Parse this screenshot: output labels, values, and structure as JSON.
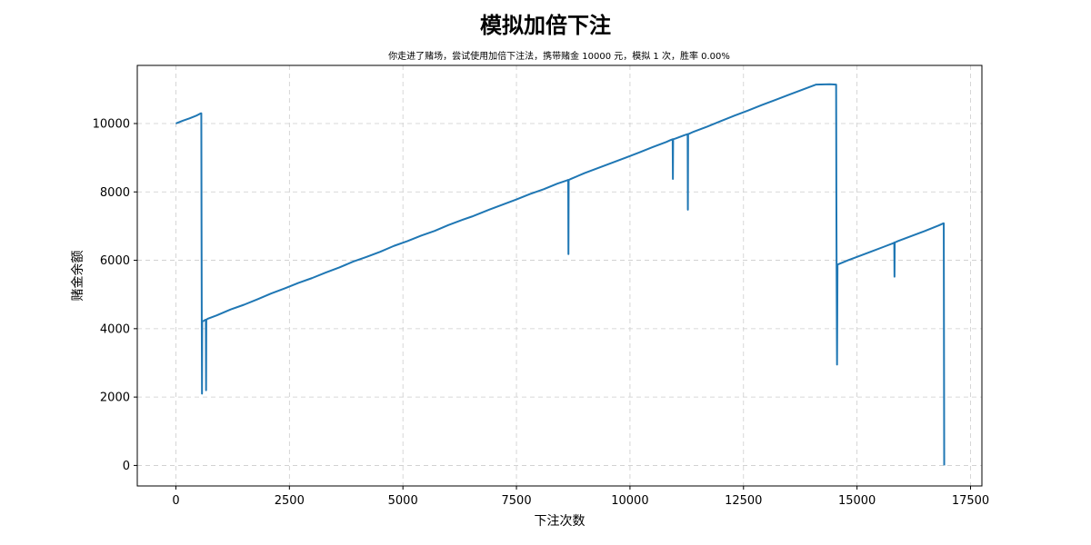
{
  "chart_data": {
    "type": "line",
    "title": "模拟加倍下注",
    "subtitle": "你走进了赌场，尝试使用加倍下注法，携带赌金 10000 元，模拟 1 次，胜率 0.00%",
    "xlabel": "下注次数",
    "ylabel": "赌金余额",
    "xlim": [
      -850,
      17750
    ],
    "ylim": [
      -600,
      11700
    ],
    "xticks": [
      0,
      2500,
      5000,
      7500,
      10000,
      12500,
      15000,
      17500
    ],
    "yticks": [
      0,
      2000,
      4000,
      6000,
      8000,
      10000
    ],
    "grid": true,
    "line_color": "#1f77b4",
    "series": [
      {
        "x": [
          0,
          150,
          300,
          450,
          550,
          560,
          565,
          570,
          575,
          580,
          600,
          650,
          660,
          665,
          670,
          700,
          900,
          1200,
          1500,
          1800,
          2100,
          2400,
          2700,
          3000,
          3300,
          3600,
          3900,
          4200,
          4500,
          4800,
          5100,
          5400,
          5700,
          6000,
          6300,
          6520,
          6600,
          6900,
          7200,
          7500,
          7800,
          8100,
          8400,
          8600,
          8640,
          8645,
          8650,
          8700,
          9000,
          9300,
          9600,
          9900,
          10200,
          10500,
          10800,
          10900,
          10940,
          10945,
          10950,
          11000,
          11200,
          11270,
          11275,
          11280,
          11300,
          11400,
          11700,
          12000,
          12300,
          12600,
          12900,
          13200,
          13500,
          13800,
          14100,
          14400,
          14540,
          14545,
          14550,
          14560,
          14570,
          14580,
          14600,
          14800,
          15000,
          15300,
          15600,
          15800,
          15820,
          15825,
          15830,
          15900,
          16200,
          16500,
          16800,
          16900,
          16910,
          16920
        ],
        "y": [
          10000,
          10080,
          10150,
          10230,
          10300,
          10300,
          7000,
          4220,
          2100,
          4220,
          4220,
          4260,
          4260,
          2200,
          4260,
          4290,
          4390,
          4560,
          4700,
          4860,
          5030,
          5180,
          5340,
          5480,
          5640,
          5790,
          5960,
          6100,
          6250,
          6420,
          6560,
          6720,
          6860,
          7030,
          7180,
          7280,
          7320,
          7480,
          7630,
          7780,
          7940,
          8080,
          8240,
          8330,
          8350,
          6180,
          8350,
          8380,
          8550,
          8700,
          8850,
          9000,
          9150,
          9310,
          9460,
          9520,
          9540,
          8380,
          9540,
          9560,
          9660,
          9690,
          7480,
          9690,
          9700,
          9760,
          9910,
          10070,
          10230,
          10380,
          10540,
          10690,
          10840,
          10990,
          11140,
          11150,
          11140,
          8000,
          5880,
          2950,
          5880,
          5880,
          5890,
          6000,
          6100,
          6250,
          6400,
          6500,
          6520,
          5520,
          6520,
          6560,
          6710,
          6860,
          7020,
          7080,
          7080,
          0
        ]
      }
    ]
  }
}
